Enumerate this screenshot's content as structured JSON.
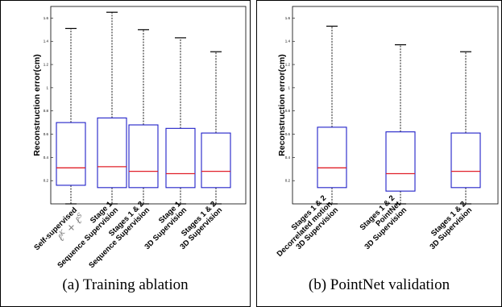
{
  "chart_data": [
    {
      "type": "box",
      "caption": "(a) Training ablation",
      "ylabel": "Reconstruction error(cm)",
      "ylim": [
        0,
        1.7
      ],
      "yticks": [
        "0.2",
        "0.4",
        "0.6",
        "0.8",
        "1",
        "1.2",
        "1.4",
        "1.6"
      ],
      "categories": [
        {
          "lines": [
            "Self-supervised"
          ],
          "sym": [
            "ℓ",
            "K",
            " + ",
            "ℓ",
            "S"
          ]
        },
        {
          "lines": [
            "Stage 1",
            "Sequence Supervision"
          ]
        },
        {
          "lines": [
            "Stages 1 & 2",
            "Sequence Supervision"
          ]
        },
        {
          "lines": [
            "Stage 1",
            "3D Supervision"
          ]
        },
        {
          "lines": [
            "Stages 1 & 2",
            "3D Supervision"
          ]
        }
      ],
      "boxes": [
        {
          "min": 0.0,
          "q1": 0.16,
          "median": 0.31,
          "q3": 0.7,
          "max": 1.51
        },
        {
          "min": 0.0,
          "q1": 0.14,
          "median": 0.32,
          "q3": 0.74,
          "max": 1.65
        },
        {
          "min": 0.0,
          "q1": 0.14,
          "median": 0.28,
          "q3": 0.68,
          "max": 1.5
        },
        {
          "min": 0.0,
          "q1": 0.14,
          "median": 0.26,
          "q3": 0.65,
          "max": 1.43
        },
        {
          "min": 0.0,
          "q1": 0.14,
          "median": 0.28,
          "q3": 0.61,
          "max": 1.31
        }
      ]
    },
    {
      "type": "box",
      "caption": "(b) PointNet validation",
      "ylabel": "Reconstruction error(cm)",
      "ylim": [
        0,
        1.7
      ],
      "yticks": [
        "0.2",
        "0.4",
        "0.6",
        "0.8",
        "1",
        "1.2",
        "1.4",
        "1.6"
      ],
      "categories": [
        {
          "lines": [
            "Stages 1 & 2",
            "Decorrelated motion",
            "3D Supervision"
          ]
        },
        {
          "lines": [
            "Stages 1 & 2",
            "PointNet",
            "3D Supervision"
          ]
        },
        {
          "lines": [
            "Stages 1 & 2",
            "3D Supervision"
          ]
        }
      ],
      "boxes": [
        {
          "min": 0.0,
          "q1": 0.14,
          "median": 0.31,
          "q3": 0.66,
          "max": 1.53
        },
        {
          "min": 0.0,
          "q1": 0.11,
          "median": 0.26,
          "q3": 0.62,
          "max": 1.37
        },
        {
          "min": 0.0,
          "q1": 0.14,
          "median": 0.28,
          "q3": 0.61,
          "max": 1.31
        }
      ]
    }
  ],
  "colors": {
    "box": "#1f1fc8",
    "median": "#e0202a",
    "whisker": "#000000"
  }
}
